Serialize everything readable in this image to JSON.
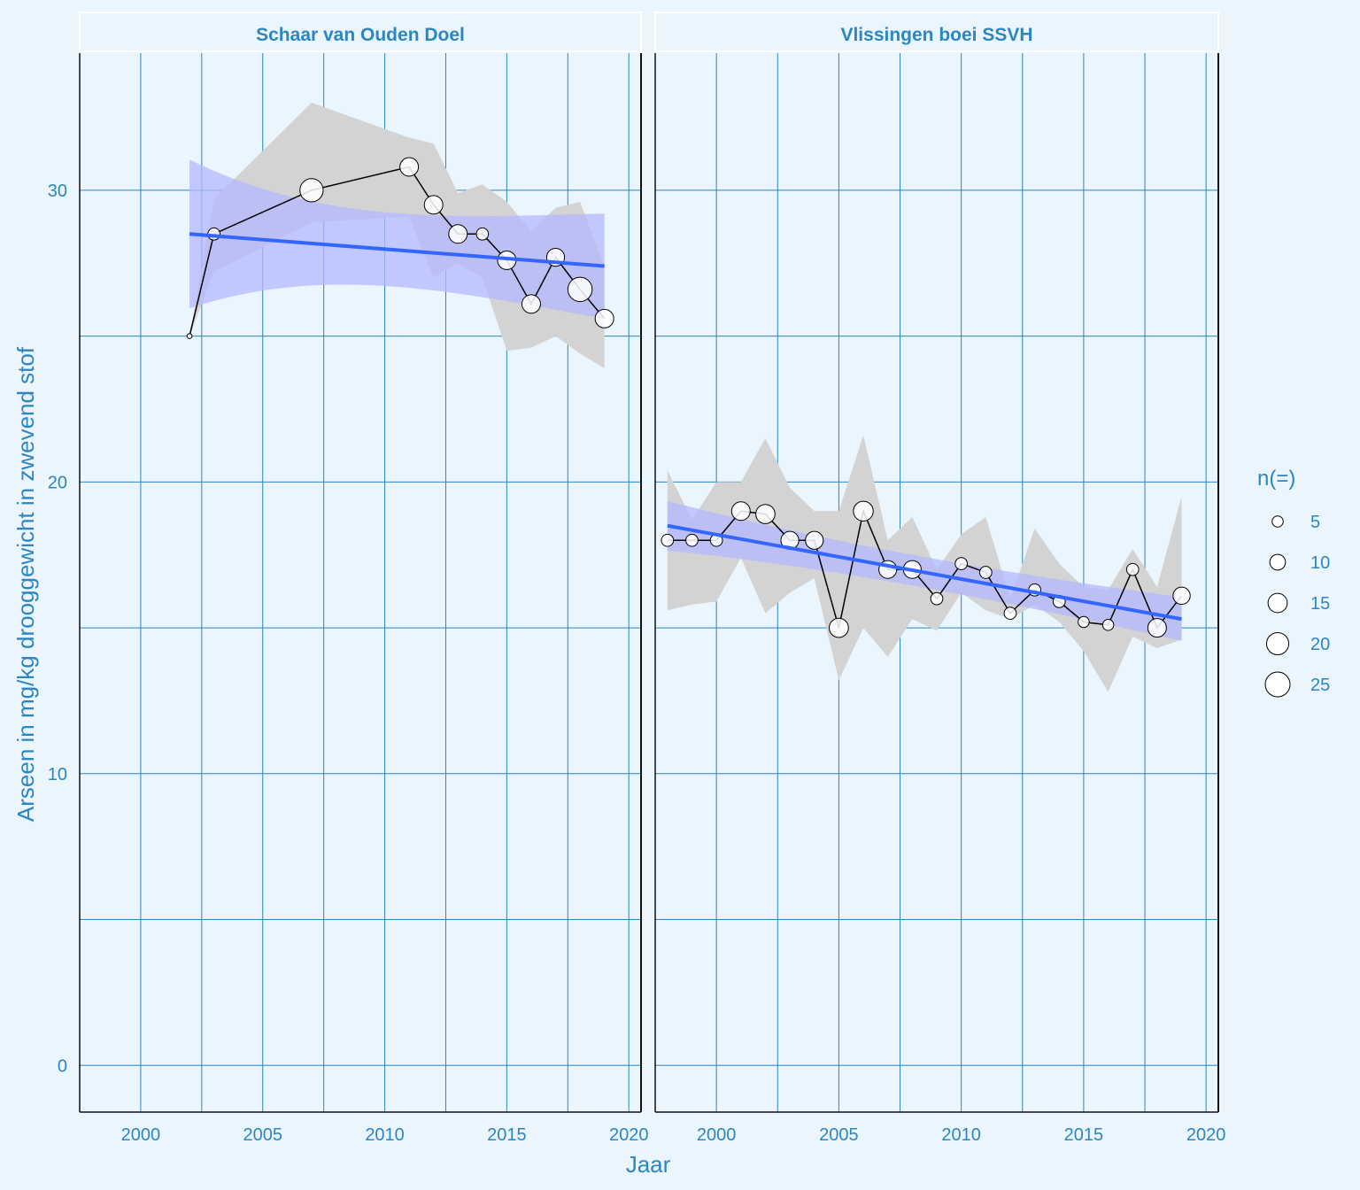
{
  "chart_data": {
    "type": "line",
    "ylabel": "Arseen in mg/kg drooggewicht in zwevend stof",
    "xlabel": "Jaar",
    "x_ticks": [
      2000,
      2005,
      2010,
      2015,
      2020
    ],
    "y_ticks": [
      0,
      10,
      20,
      30
    ],
    "xlim": [
      1997.5,
      2020.5
    ],
    "ylim": [
      -1.6,
      34.7
    ],
    "grid": true,
    "legend": {
      "title": "n(=)",
      "position": "right",
      "sizes": [
        5,
        10,
        15,
        20,
        25
      ],
      "labels": [
        "5",
        "10",
        "15",
        "20",
        "25"
      ]
    },
    "colors": {
      "background": "#eaf5fd",
      "grid": "#2c86c0",
      "text": "#2c86c0",
      "trend_line": "#3366ff",
      "trend_band": "#b3b8ff",
      "uncertainty_band": "#d3d3d3",
      "observation_line": "#000000",
      "point_fill": "#ffffff"
    },
    "panels": [
      {
        "title": "Schaar van Ouden Doel",
        "series": [
          {
            "name": "observations",
            "x": [
              2002,
              2003,
              2007,
              2011,
              2012,
              2013,
              2014,
              2015,
              2016,
              2017,
              2018,
              2019
            ],
            "y": [
              25.0,
              28.5,
              30.0,
              30.8,
              29.5,
              28.5,
              28.5,
              27.6,
              26.1,
              27.7,
              26.6,
              25.6
            ],
            "n": [
              1,
              6,
              22,
              14,
              14,
              14,
              6,
              14,
              14,
              13,
              24,
              14
            ]
          },
          {
            "name": "band_upper",
            "x": [
              2002,
              2003,
              2007,
              2011,
              2012,
              2013,
              2014,
              2015,
              2016,
              2017,
              2018,
              2019
            ],
            "y": [
              25.0,
              29.7,
              33.0,
              31.8,
              31.6,
              29.9,
              30.2,
              29.6,
              28.6,
              29.4,
              29.6,
              27.4
            ]
          },
          {
            "name": "band_lower",
            "x": [
              2002,
              2003,
              2007,
              2011,
              2012,
              2013,
              2014,
              2015,
              2016,
              2017,
              2018,
              2019
            ],
            "y": [
              25.0,
              27.2,
              28.9,
              29.1,
              27.0,
              27.5,
              27.0,
              24.5,
              24.6,
              25.0,
              24.4,
              23.9
            ]
          },
          {
            "name": "trend",
            "x": [
              2002,
              2019
            ],
            "y": [
              28.5,
              27.4
            ],
            "ci_lower": [
              26.0,
              25.7
            ],
            "ci_upper": [
              31.1,
              29.3
            ]
          }
        ]
      },
      {
        "title": "Vlissingen boei SSVH",
        "series": [
          {
            "name": "observations",
            "x": [
              1998,
              1999,
              2000,
              2001,
              2002,
              2003,
              2004,
              2005,
              2006,
              2007,
              2008,
              2009,
              2010,
              2011,
              2012,
              2013,
              2014,
              2015,
              2016,
              2017,
              2018,
              2019
            ],
            "y": [
              18.0,
              18.0,
              18.0,
              19.0,
              18.9,
              18.0,
              18.0,
              15.0,
              19.0,
              17.0,
              17.0,
              16.0,
              17.2,
              16.9,
              15.5,
              16.3,
              15.9,
              15.2,
              15.1,
              17.0,
              15.0,
              16.1
            ],
            "n": [
              6,
              6,
              6,
              14,
              15,
              13,
              13,
              15,
              16,
              13,
              13,
              6,
              6,
              6,
              6,
              6,
              6,
              5,
              5,
              6,
              14,
              12
            ]
          },
          {
            "name": "band_upper",
            "x": [
              1998,
              1999,
              2000,
              2001,
              2002,
              2003,
              2004,
              2005,
              2006,
              2007,
              2008,
              2009,
              2010,
              2011,
              2012,
              2013,
              2014,
              2015,
              2016,
              2017,
              2018,
              2019
            ],
            "y": [
              20.4,
              18.7,
              20.0,
              20.0,
              21.5,
              19.8,
              19.0,
              19.0,
              21.6,
              18.0,
              18.8,
              17.0,
              18.2,
              18.8,
              16.0,
              18.4,
              17.2,
              16.4,
              16.3,
              17.7,
              16.4,
              19.5
            ]
          },
          {
            "name": "band_lower",
            "x": [
              1998,
              1999,
              2000,
              2001,
              2002,
              2003,
              2004,
              2005,
              2006,
              2007,
              2008,
              2009,
              2010,
              2011,
              2012,
              2013,
              2014,
              2015,
              2016,
              2017,
              2018,
              2019
            ],
            "y": [
              15.6,
              15.8,
              15.9,
              17.4,
              15.5,
              16.2,
              16.7,
              13.2,
              15.0,
              14.0,
              15.3,
              14.9,
              16.2,
              15.6,
              15.3,
              15.8,
              15.2,
              14.2,
              12.8,
              14.7,
              14.3,
              14.6
            ]
          },
          {
            "name": "trend",
            "x": [
              1998,
              2019
            ],
            "y": [
              18.5,
              15.3
            ],
            "ci_lower": [
              17.6,
              14.6
            ],
            "ci_upper": [
              19.3,
              16.1
            ]
          }
        ]
      }
    ]
  }
}
